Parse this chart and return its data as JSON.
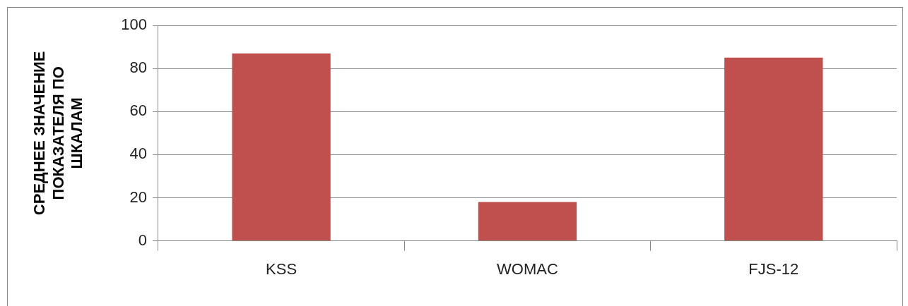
{
  "chart_data": {
    "type": "bar",
    "ylabel": "СРЕДНЕЕ ЗНАЧЕНИЕ ПОКАЗАТЕЛЯ ПО ШКАЛАМ",
    "categories": [
      "KSS",
      "WOMAC",
      "FJS-12"
    ],
    "values": [
      87,
      18,
      85
    ],
    "color": "#c0504d",
    "ylim": [
      0,
      100
    ],
    "yticks": [
      0,
      20,
      40,
      60,
      80,
      100
    ],
    "grid": "y",
    "legend": false
  }
}
